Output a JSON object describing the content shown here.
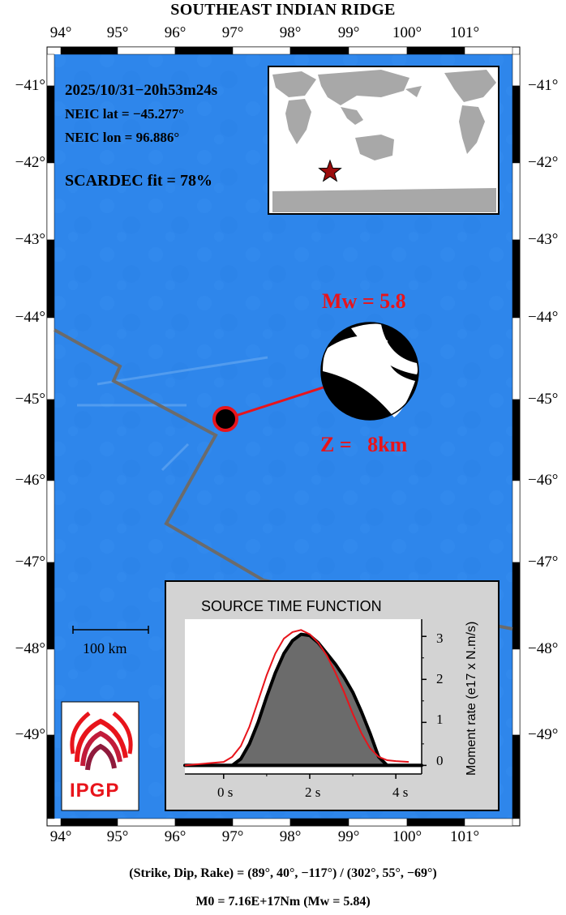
{
  "map": {
    "title": "SOUTHEAST INDIAN RIDGE",
    "lon_ticks": [
      "94°",
      "95°",
      "96°",
      "97°",
      "98°",
      "99°",
      "100°",
      "101°"
    ],
    "lat_ticks": [
      "−41°",
      "−42°",
      "−43°",
      "−44°",
      "−45°",
      "−46°",
      "−47°",
      "−48°",
      "−49°"
    ],
    "ocean_color": "#2f86ec",
    "plate_boundary_color": "#6b6b6b"
  },
  "event": {
    "datetime": "2025/10/31−20h53m24s",
    "lat_text": "NEIC lat  = −45.277°",
    "lon_text": "NEIC lon = 96.886°",
    "fit_text": "SCARDEC fit = 78%",
    "magnitude_text": "Mw = 5.8",
    "depth_text": "Z =   8km",
    "epicenter": {
      "lon": 96.886,
      "lat": -45.277
    },
    "marker_color": "#e8141b"
  },
  "inset": {
    "description_marker": "star-icon"
  },
  "scale_bar": {
    "label": "100 km"
  },
  "logo": {
    "text": "IPGP"
  },
  "stf": {
    "title": "SOURCE TIME FUNCTION",
    "x_ticks": [
      "0 s",
      "2 s",
      "4 s"
    ],
    "y_ticks": [
      "0",
      "1",
      "2",
      "3"
    ],
    "ylabel": "Moment rate (e17 x N.m/s)"
  },
  "chart_data": {
    "type": "area",
    "title": "SOURCE TIME FUNCTION",
    "xlabel": "",
    "ylabel": "Moment rate (e17 x N.m/s)",
    "xlim": [
      -0.9,
      4.6
    ],
    "ylim": [
      -0.2,
      3.4
    ],
    "series": [
      {
        "x": [
          -0.9,
          0.2,
          0.4,
          0.6,
          0.8,
          1.0,
          1.2,
          1.4,
          1.6,
          1.8,
          2.0,
          2.2,
          2.4,
          2.6,
          2.8,
          3.0,
          3.2,
          3.4,
          3.6,
          3.8,
          4.6
        ],
        "values": [
          0,
          0,
          0.15,
          0.5,
          1.0,
          1.6,
          2.15,
          2.6,
          2.9,
          3.05,
          3.02,
          2.85,
          2.6,
          2.35,
          2.05,
          1.7,
          1.25,
          0.75,
          0.2,
          0,
          0
        ]
      },
      {
        "x": [
          -0.9,
          0.0,
          0.2,
          0.4,
          0.6,
          0.8,
          1.0,
          1.2,
          1.4,
          1.6,
          1.8,
          2.0,
          2.2,
          2.4,
          2.6,
          2.8,
          3.0,
          3.2,
          3.4,
          3.6,
          3.8,
          4.0,
          4.3
        ],
        "values": [
          0.0,
          0.08,
          0.2,
          0.45,
          0.9,
          1.5,
          2.1,
          2.6,
          2.95,
          3.1,
          3.15,
          3.05,
          2.85,
          2.55,
          2.15,
          1.7,
          1.2,
          0.75,
          0.4,
          0.2,
          0.12,
          0.1,
          0.08
        ]
      }
    ]
  },
  "footer": {
    "line1": "(Strike, Dip, Rake) = (89°, 40°, −117°) / (302°, 55°, −69°)",
    "line2": "M0 = 7.16E+17Nm  (Mw = 5.84)"
  }
}
